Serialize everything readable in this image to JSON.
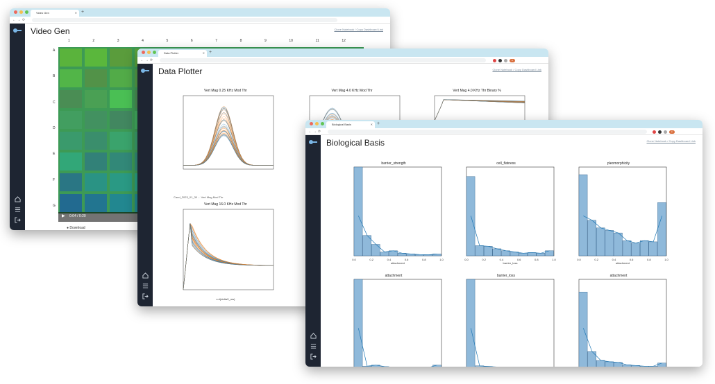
{
  "win1": {
    "tab": "Video Gen",
    "title": "Video Gen",
    "links": "Clone Notebook / Copy Dashboard Link",
    "col_labels": [
      "1",
      "2",
      "3",
      "4",
      "5",
      "6",
      "7",
      "8",
      "9",
      "10",
      "11",
      "12"
    ],
    "row_labels": [
      "A",
      "B",
      "C",
      "D",
      "E",
      "F",
      "G"
    ],
    "time": "0:04 / 0:20",
    "download": "Download"
  },
  "win2": {
    "tab": "Data Plotter",
    "title": "Data Plotter",
    "links": "Clone Notebook / Copy Dashboard Link",
    "plot_titles": [
      "Vert Mag 0.25 KHz Mod Thr",
      "Vert Mag 4.0 KHz Mod Thr",
      "Vert Mag 4.0 KHz Thr Binary %",
      "Vert Mag 16.0 KHz Mod Thr"
    ],
    "subcaption": "Cand_2023_01_30 ... Vert Mag Mod Thr",
    "xlabel": "x=t(deltaX_ms)"
  },
  "win3": {
    "tab": "Biological Basis",
    "title": "Biological Basis",
    "links": "Clone Notebook / Copy Dashboard Link",
    "hist_titles": [
      "barrier_strength",
      "cell_flatness",
      "pleomorphicity",
      "attachment",
      "barrier_loss",
      "attachment"
    ],
    "hist_xlabels": [
      "attachment",
      "barrier_loss",
      "attachment",
      "",
      "",
      ""
    ]
  },
  "colors": {
    "sidebar": "#1e2532",
    "accent_blue": "#1f77b4",
    "accent_orange": "#ff7f0e",
    "hist_fill": "#8fb9da",
    "tabbar": "#c9e6f1"
  },
  "chart_data": [
    {
      "type": "histogram",
      "title": "barrier_strength",
      "x": [
        0.0,
        0.1,
        0.2,
        0.3,
        0.4,
        0.5,
        0.6,
        0.7,
        0.8,
        0.9
      ],
      "values": [
        1400,
        320,
        180,
        60,
        80,
        40,
        30,
        20,
        15,
        30
      ],
      "ylim": [
        0,
        1400
      ],
      "xlim": [
        0,
        1.0
      ]
    },
    {
      "type": "histogram",
      "title": "cell_flatness",
      "x": [
        0.0,
        0.1,
        0.2,
        0.3,
        0.4,
        0.5,
        0.6,
        0.7,
        0.8,
        0.9
      ],
      "values": [
        1250,
        160,
        150,
        110,
        80,
        60,
        40,
        50,
        40,
        80
      ],
      "ylim": [
        0,
        1400
      ],
      "xlim": [
        0,
        1.0
      ]
    },
    {
      "type": "histogram",
      "title": "pleomorphicity",
      "x": [
        0.0,
        0.1,
        0.2,
        0.3,
        0.4,
        0.5,
        0.6,
        0.7,
        0.8,
        0.9
      ],
      "values": [
        640,
        280,
        220,
        200,
        180,
        120,
        100,
        120,
        110,
        420
      ],
      "ylim": [
        0,
        700
      ],
      "xlim": [
        0,
        1.0
      ]
    },
    {
      "type": "histogram",
      "title": "attachment",
      "x": [
        0.0,
        0.1,
        0.2,
        0.3,
        0.4,
        0.5,
        0.6,
        0.7,
        0.8,
        0.9
      ],
      "values": [
        1800,
        40,
        60,
        30,
        20,
        15,
        10,
        10,
        10,
        60
      ],
      "ylim": [
        0,
        1800
      ],
      "xlim": [
        0,
        1.0
      ]
    },
    {
      "type": "histogram",
      "title": "barrier_loss",
      "x": [
        0.0,
        0.1,
        0.2,
        0.3,
        0.4,
        0.5,
        0.6,
        0.7,
        0.8,
        0.9
      ],
      "values": [
        1600,
        40,
        30,
        20,
        20,
        10,
        10,
        10,
        10,
        20
      ],
      "ylim": [
        0,
        1600
      ],
      "xlim": [
        0,
        1.0
      ]
    },
    {
      "type": "histogram",
      "title": "attachment",
      "x": [
        0.0,
        0.1,
        0.2,
        0.3,
        0.4,
        0.5,
        0.6,
        0.7,
        0.8,
        0.9
      ],
      "values": [
        1200,
        260,
        120,
        100,
        90,
        50,
        40,
        30,
        30,
        80
      ],
      "ylim": [
        0,
        1400
      ],
      "xlim": [
        0,
        1.0
      ]
    }
  ]
}
